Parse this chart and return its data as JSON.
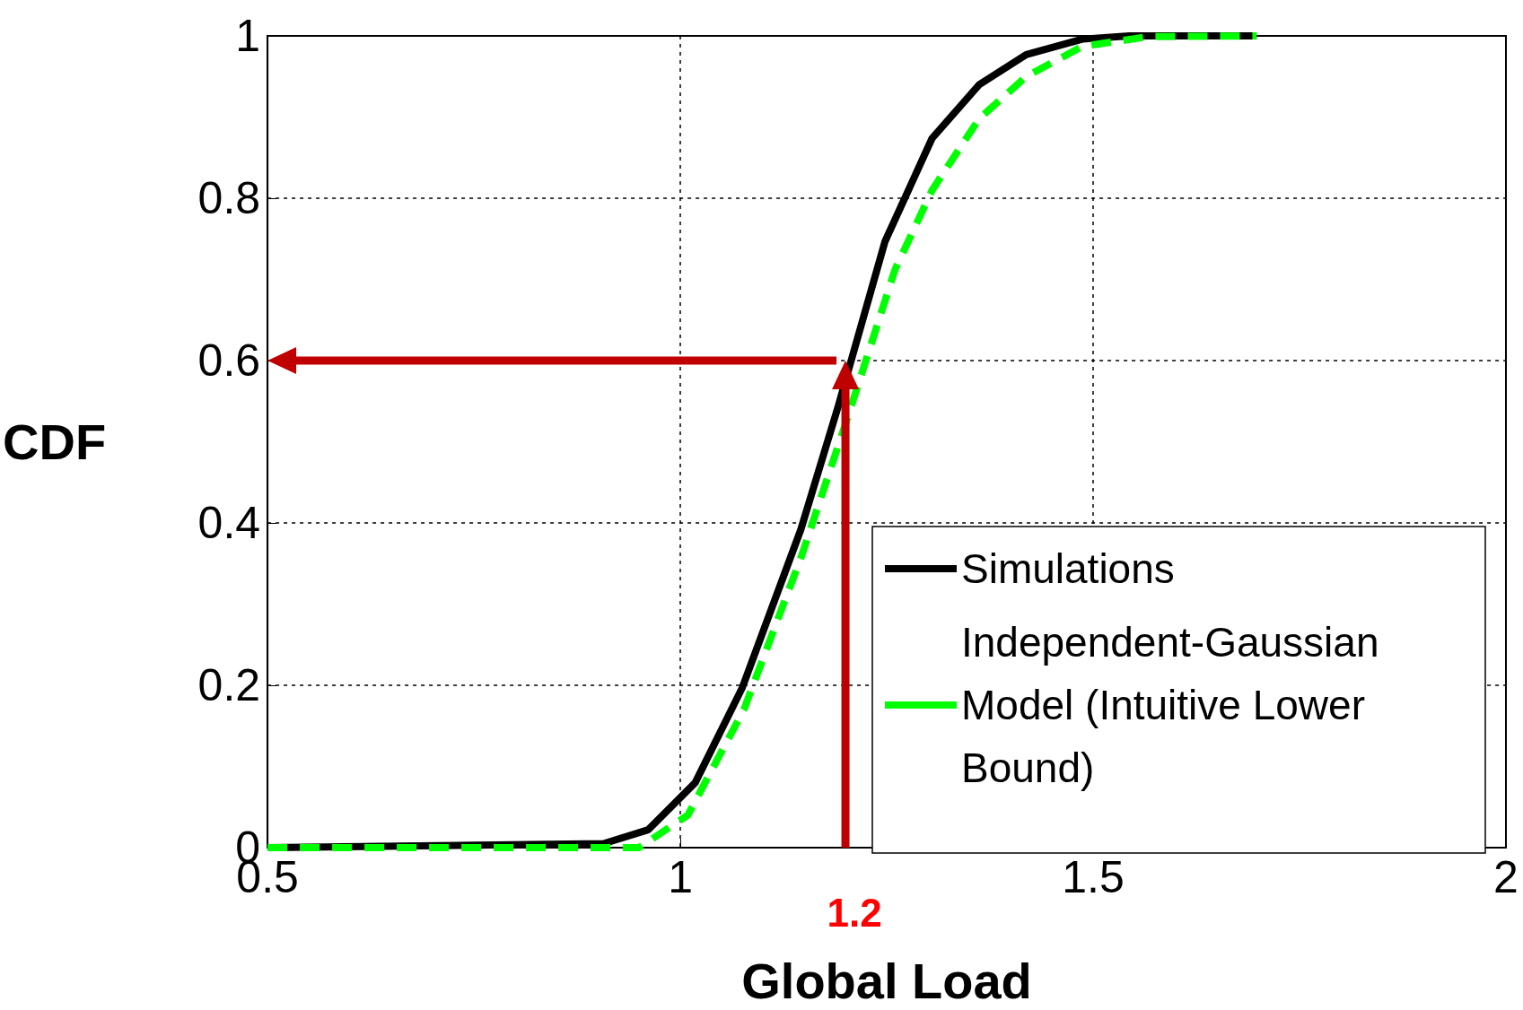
{
  "chart_data": {
    "type": "line",
    "xlabel": "Global Load",
    "ylabel": "CDF",
    "xlim": [
      0.5,
      2
    ],
    "xticks": [
      0.5,
      1,
      1.5,
      2
    ],
    "ylim": [
      0,
      1
    ],
    "yticks": [
      0,
      0.2,
      0.4,
      0.6,
      0.8,
      1
    ],
    "grid": true,
    "legend": "bottom right",
    "marker": "none",
    "series": [
      {
        "name": "Simulations",
        "color": "#000000",
        "line_style": "solid",
        "x": [
          0.5,
          0.907,
          0.961,
          1.018,
          1.075,
          1.146,
          1.191,
          1.248,
          1.305,
          1.362,
          1.419,
          1.487,
          1.544,
          1.698
        ],
        "values": [
          0,
          0.005,
          0.022,
          0.08,
          0.197,
          0.392,
          0.543,
          0.747,
          0.874,
          0.94,
          0.977,
          0.996,
          1,
          1
        ]
      },
      {
        "name": "Independent-Gaussian Model (Intuitive Lower Bound)",
        "color": "#00ff00",
        "line_style": "dashed",
        "x": [
          0.5,
          0.95,
          1.009,
          1.077,
          1.146,
          1.203,
          1.26,
          1.305,
          1.362,
          1.419,
          1.487,
          1.567,
          1.698
        ],
        "values": [
          0,
          0,
          0.04,
          0.17,
          0.357,
          0.531,
          0.712,
          0.81,
          0.898,
          0.95,
          0.987,
          0.999,
          1
        ]
      }
    ],
    "ref_lines": [
      {
        "axis": "x",
        "value": 1.2,
        "label": "1.2",
        "color": "#c00000"
      },
      {
        "axis": "y",
        "value": 0.6,
        "color": "#c00000"
      }
    ]
  }
}
